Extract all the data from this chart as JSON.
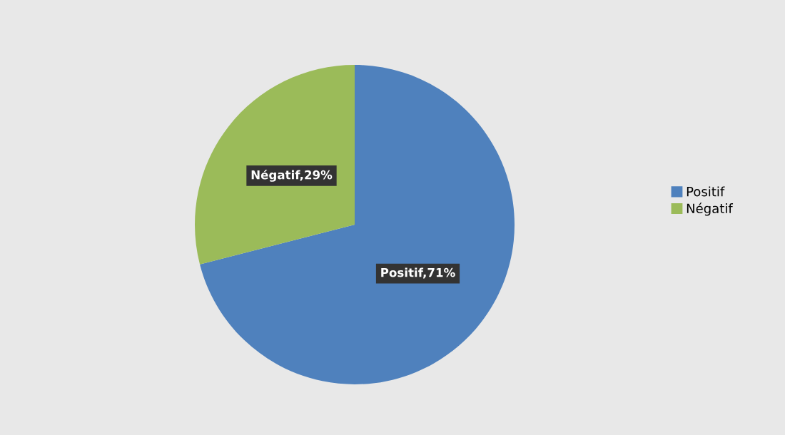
{
  "chart_data": {
    "type": "pie",
    "categories": [
      "Positif",
      "Négatif"
    ],
    "values": [
      71,
      29
    ],
    "colors": [
      "#4f81bd",
      "#9bbb59"
    ],
    "value_labels": [
      "Positif,71%",
      "Négatif,29%"
    ],
    "legend": "right"
  }
}
